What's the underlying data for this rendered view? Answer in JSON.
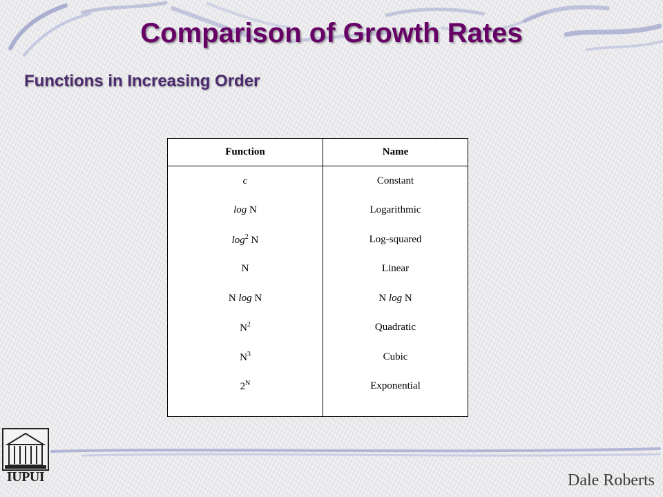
{
  "slide": {
    "title": "Comparison of Growth Rates",
    "subtitle": "Functions in Increasing Order",
    "author": "Dale Roberts",
    "logo_text": "IUPUI"
  },
  "table": {
    "headers": [
      "Function",
      "Name"
    ],
    "rows": [
      {
        "function": [
          {
            "t": "c",
            "i": true
          }
        ],
        "name": "Constant"
      },
      {
        "function": [
          {
            "t": "log",
            "i": true
          },
          {
            "t": " N"
          }
        ],
        "name": "Logarithmic"
      },
      {
        "function": [
          {
            "t": "log",
            "i": true
          },
          {
            "t": "2",
            "sup": true
          },
          {
            "t": " N"
          }
        ],
        "name": "Log-squared"
      },
      {
        "function": [
          {
            "t": "N"
          }
        ],
        "name": "Linear"
      },
      {
        "function": [
          {
            "t": "N "
          },
          {
            "t": "log",
            "i": true
          },
          {
            "t": " N"
          }
        ],
        "name": "N log N"
      },
      {
        "function": [
          {
            "t": "N"
          },
          {
            "t": "2",
            "sup": true
          }
        ],
        "name": "Quadratic"
      },
      {
        "function": [
          {
            "t": "N"
          },
          {
            "t": "3",
            "sup": true
          }
        ],
        "name": "Cubic"
      },
      {
        "function": [
          {
            "t": "2"
          },
          {
            "t": "N",
            "sup": true
          }
        ],
        "name": "Exponential"
      }
    ]
  },
  "colors": {
    "title": "#660066",
    "subtitle": "#4b2a6e",
    "swash": "#9aa0cc"
  }
}
